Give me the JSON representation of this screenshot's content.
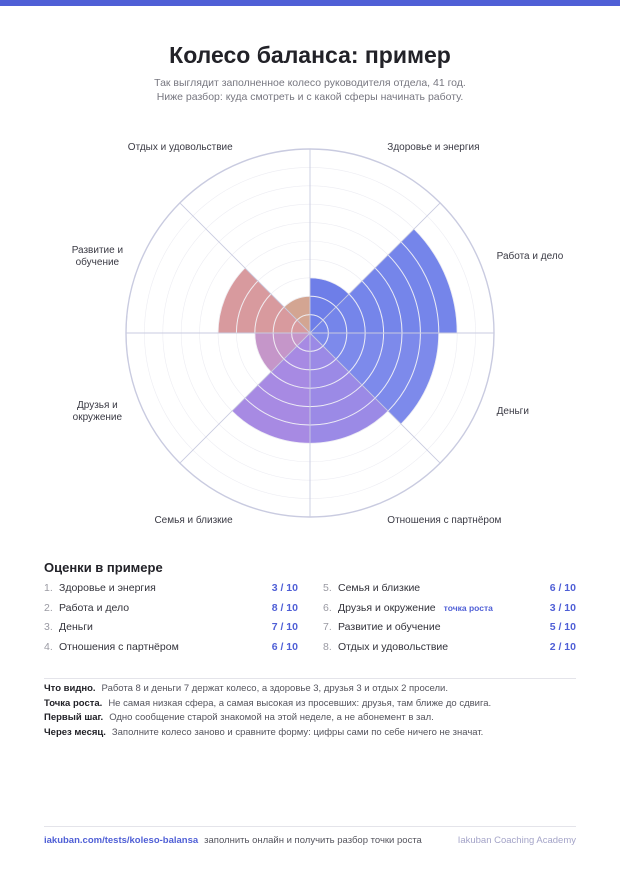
{
  "header": {
    "title": "Колесо баланса: пример",
    "subtitle_line1": "Так выглядит заполненное колесо руководителя отдела, 41 год.",
    "subtitle_line2": "Ниже разбор: куда смотреть и с какой сферы начинать работу."
  },
  "chart_data": {
    "type": "polar-area",
    "max": 10,
    "rings": 10,
    "grid": true,
    "categories": [
      {
        "name": "Здоровье и энергия",
        "value": 3,
        "color": "#6e7ee8",
        "label_lines": [
          "Здоровье и энергия"
        ]
      },
      {
        "name": "Работа и дело",
        "value": 8,
        "color": "#7585ea",
        "label_lines": [
          "Работа и дело"
        ]
      },
      {
        "name": "Деньги",
        "value": 7,
        "color": "#7d8aeb",
        "label_lines": [
          "Деньги"
        ]
      },
      {
        "name": "Отношения с партнёром",
        "value": 6,
        "color": "#9b8ae6",
        "label_lines": [
          "Отношения с партнёром"
        ]
      },
      {
        "name": "Семья и близкие",
        "value": 6,
        "color": "#a78ae3",
        "label_lines": [
          "Семья и близкие"
        ]
      },
      {
        "name": "Друзья и окружение",
        "value": 3,
        "color": "#c596c9",
        "label_lines": [
          "Друзья и",
          "окружение"
        ]
      },
      {
        "name": "Развитие и обучение",
        "value": 5,
        "color": "#d89a9e",
        "label_lines": [
          "Развитие и",
          "обучение"
        ]
      },
      {
        "name": "Отдых и удовольствие",
        "value": 2,
        "color": "#d3a592",
        "label_lines": [
          "Отдых и удовольствие"
        ]
      }
    ]
  },
  "scores": {
    "title": "Оценки в примере",
    "items": [
      {
        "num": "1.",
        "name": "Здоровье и энергия",
        "tag": "",
        "value": "3 / 10"
      },
      {
        "num": "2.",
        "name": "Работа и дело",
        "tag": "",
        "value": "8 / 10"
      },
      {
        "num": "3.",
        "name": "Деньги",
        "tag": "",
        "value": "7 / 10"
      },
      {
        "num": "4.",
        "name": "Отношения с партнёром",
        "tag": "",
        "value": "6 / 10"
      },
      {
        "num": "5.",
        "name": "Семья и близкие",
        "tag": "",
        "value": "6 / 10"
      },
      {
        "num": "6.",
        "name": "Друзья и окружение",
        "tag": "точка роста",
        "value": "3 / 10"
      },
      {
        "num": "7.",
        "name": "Развитие и обучение",
        "tag": "",
        "value": "5 / 10"
      },
      {
        "num": "8.",
        "name": "Отдых и удовольствие",
        "tag": "",
        "value": "2 / 10"
      }
    ]
  },
  "notes": [
    {
      "label": "Что видно.",
      "text": "Работа 8 и деньги 7 держат колесо, а здоровье 3, друзья 3 и отдых 2 просели."
    },
    {
      "label": "Точка роста.",
      "text": "Не самая низкая сфера, а самая высокая из просевших: друзья, там ближе до сдвига."
    },
    {
      "label": "Первый шаг.",
      "text": "Одно сообщение старой знакомой на этой неделе, а не абонемент в зал."
    },
    {
      "label": "Через месяц.",
      "text": "Заполните колесо заново и сравните форму: цифры сами по себе ничего не значат."
    }
  ],
  "footer": {
    "link": "iakuban.com/tests/koleso-balansa",
    "description": "заполнить онлайн и получить разбор точки роста",
    "brand": "Iakuban Coaching Academy"
  }
}
